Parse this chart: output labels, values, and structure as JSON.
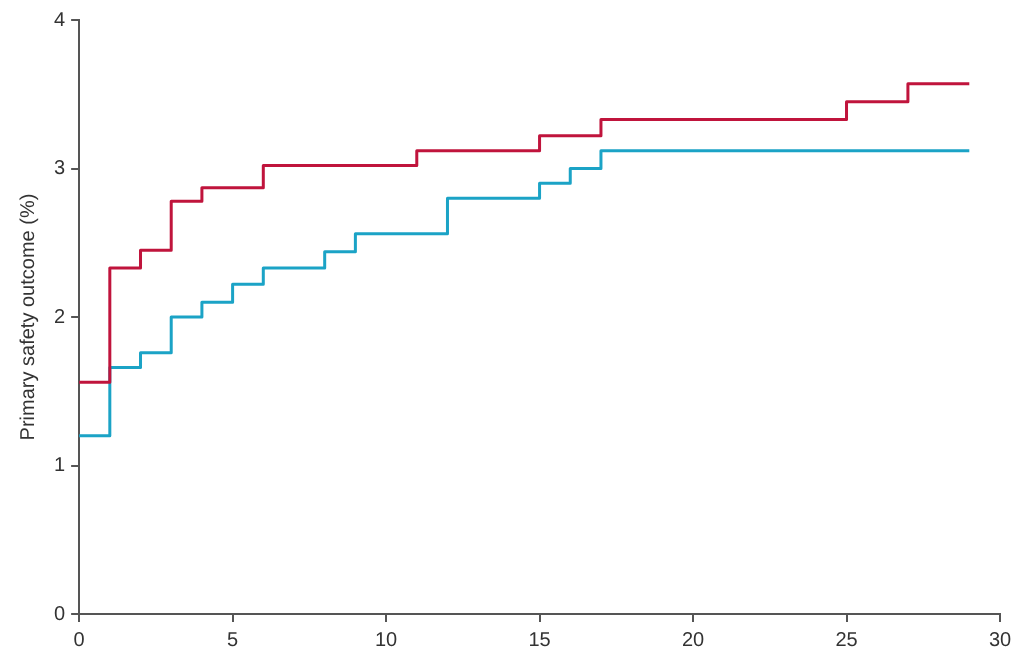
{
  "chart_data": {
    "type": "step",
    "ylabel": "Primary safety outcome (%)",
    "xlim": [
      0,
      30
    ],
    "xticks": [
      0,
      5,
      10,
      15,
      20,
      25,
      30
    ],
    "ylim": [
      0,
      4
    ],
    "yticks": [
      0,
      1,
      2,
      3,
      4
    ],
    "grid": false,
    "legend": false,
    "marker": "none",
    "line_style": "solid",
    "series": [
      {
        "color": "#c0143c",
        "x": [
          0,
          1,
          2,
          3,
          4,
          6,
          11,
          15,
          17,
          25,
          27,
          29
        ],
        "values": [
          1.56,
          2.33,
          2.45,
          2.78,
          2.87,
          3.02,
          3.12,
          3.22,
          3.33,
          3.45,
          3.57,
          3.57
        ]
      },
      {
        "color": "#1ba3c6",
        "x": [
          0,
          1,
          2,
          3,
          4,
          5,
          6,
          8,
          9,
          12,
          15,
          16,
          17,
          29
        ],
        "values": [
          1.2,
          1.66,
          1.76,
          2.0,
          2.1,
          2.22,
          2.33,
          2.44,
          2.56,
          2.8,
          2.9,
          3.0,
          3.12,
          3.12
        ]
      }
    ]
  }
}
